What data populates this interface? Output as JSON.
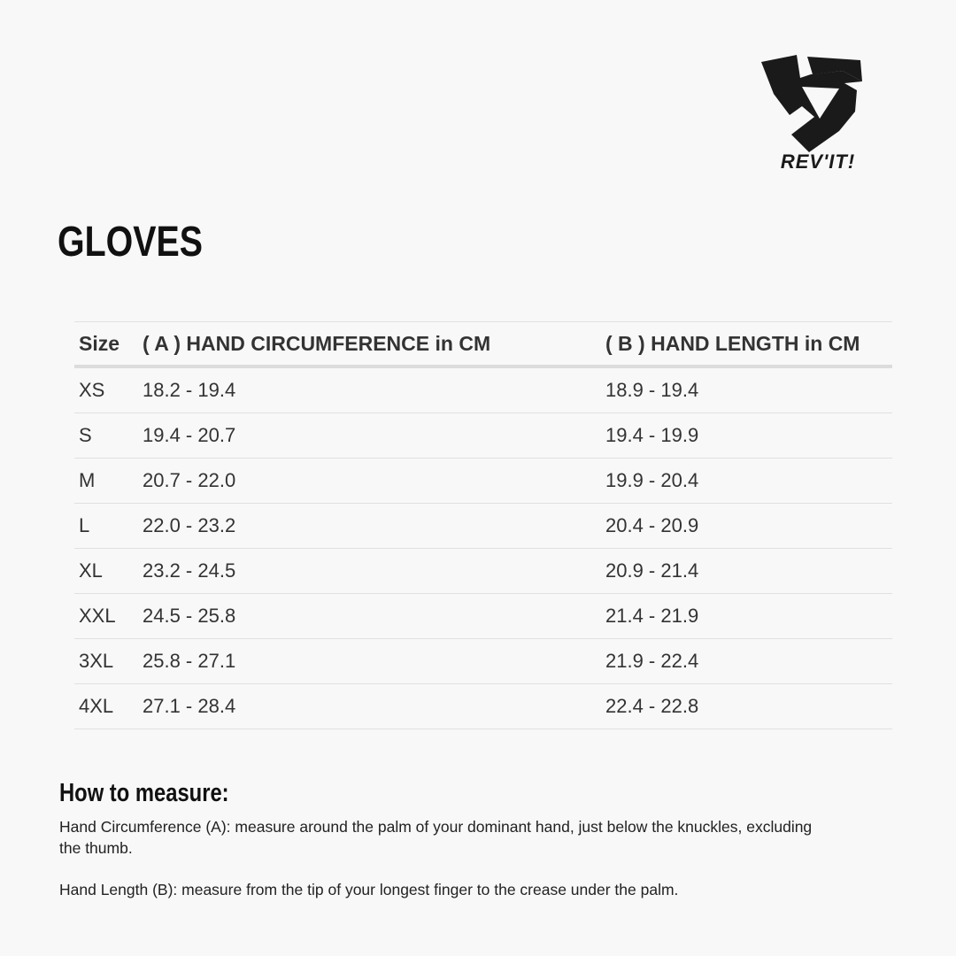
{
  "brand": {
    "logo_text": "REV'IT!"
  },
  "title": "GLOVES",
  "table": {
    "headers": [
      "Size",
      "( A ) HAND CIRCUMFERENCE in CM",
      "( B ) HAND LENGTH in CM"
    ],
    "rows": [
      [
        "XS",
        "18.2 - 19.4",
        "18.9 - 19.4"
      ],
      [
        "S",
        "19.4 - 20.7",
        "19.4 - 19.9"
      ],
      [
        "M",
        "20.7 - 22.0",
        "19.9 - 20.4"
      ],
      [
        "L",
        "22.0 - 23.2",
        "20.4 - 20.9"
      ],
      [
        "XL",
        "23.2 - 24.5",
        "20.9 - 21.4"
      ],
      [
        "XXL",
        "24.5 - 25.8",
        "21.4 - 21.9"
      ],
      [
        "3XL",
        "25.8 - 27.1",
        "21.9 - 22.4"
      ],
      [
        "4XL",
        "27.1 - 28.4",
        "22.4 - 22.8"
      ]
    ]
  },
  "how_to_measure": {
    "heading": "How to measure:",
    "circumference": "Hand Circumference (A): measure around the palm of your dominant hand, just below the knuckles, excluding the thumb.",
    "length": "Hand Length (B): measure from the tip of your longest finger to the crease under the palm."
  }
}
